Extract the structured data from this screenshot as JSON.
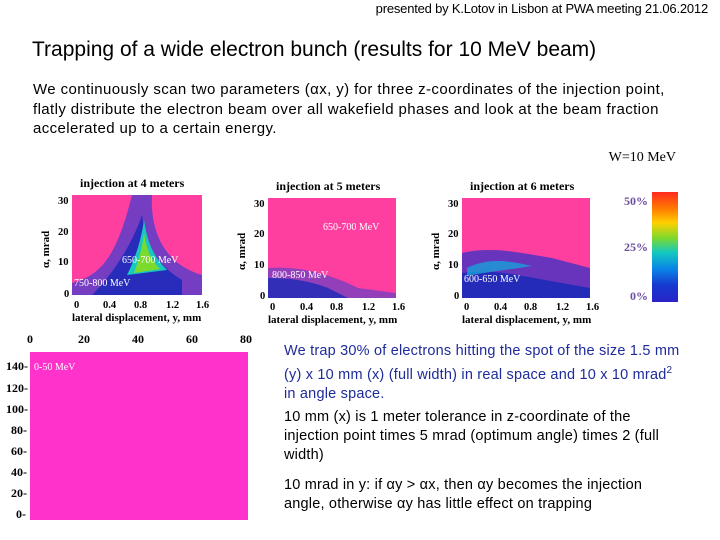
{
  "header": "presented by K.Lotov in Lisbon at PWA meeting 21.06.2012",
  "title": "Trapping of a wide electron bunch (results for 10 MeV beam)",
  "intro": "We continuously scan two parameters (αx, y) for three z-coordinates of the injection point, flatly distribute the electron beam over all wakefield phases and look at the beam fraction accelerated up to a certain energy.",
  "w_label": "W=10 MeV",
  "plots": [
    {
      "title": "injection at 4 meters",
      "bands": [
        "650-700 MeV",
        "750-800 MeV"
      ]
    },
    {
      "title": "injection at 5 meters",
      "bands": [
        "650-700 MeV",
        "800-850 MeV"
      ]
    },
    {
      "title": "injection at 6 meters",
      "bands": [
        "600-650 MeV"
      ]
    }
  ],
  "y_ticks": [
    "30",
    "20",
    "10",
    "0"
  ],
  "x_ticks": [
    "0",
    "0.4",
    "0.8",
    "1.2",
    "1.6"
  ],
  "x_label": "lateral displacement, y, mm",
  "y_label": "α, mrad",
  "legend": [
    "50%",
    "25%",
    "0%"
  ],
  "bottom_plot": {
    "top_ticks": [
      "0",
      "20",
      "40",
      "60",
      "80"
    ],
    "left_ticks": [
      "140-",
      "120-",
      "100-",
      "80-",
      "60-",
      "40-",
      "20-",
      "0-"
    ],
    "band": "0-50 MeV"
  },
  "text": {
    "p1a": "We trap 30% of electrons hitting the spot of the size 1.5 mm (y) x 10 mm (x) (full width) in real space and 10 x 10 mrad",
    "p1sup": "2",
    "p1b": " in angle space.",
    "p2": "10 mm (x) is 1 meter tolerance in z-coordinate of the injection point times 5 mrad (optimum angle) times 2 (full width)",
    "p3": "10 mrad in y: if αy > αx, then αy becomes the injection angle, otherwise αy has little effect on trapping"
  }
}
